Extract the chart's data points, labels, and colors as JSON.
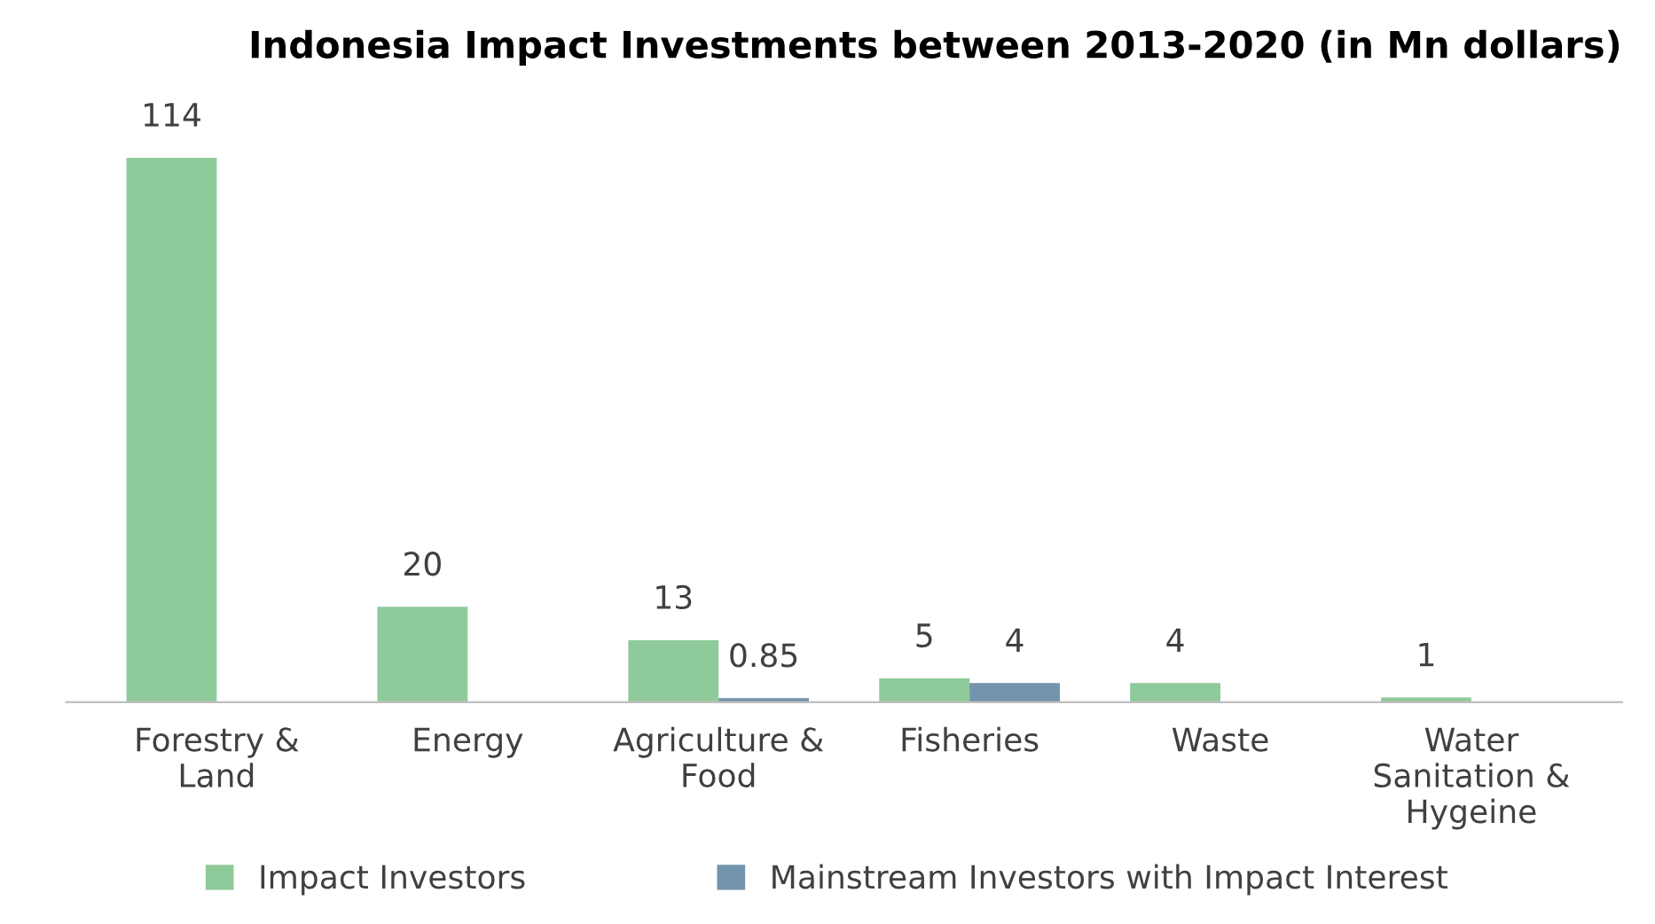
{
  "chart_data": {
    "type": "bar",
    "title": "Indonesia Impact Investments between 2013-2020 (in Mn dollars)",
    "categories": [
      "Forestry &\nLand",
      "Energy",
      "Agriculture &\nFood",
      "Fisheries",
      "Waste",
      "Water\nSanitation &\nHygeine"
    ],
    "series": [
      {
        "name": "Impact Investors",
        "color": "#8fca9b",
        "values": [
          114,
          20,
          13,
          5,
          4,
          1
        ]
      },
      {
        "name": "Mainstream Investors with Impact Interest",
        "color": "#7394ad",
        "values": [
          null,
          null,
          0.85,
          4,
          null,
          null
        ]
      }
    ],
    "data_labels": true,
    "legend": "bottom"
  }
}
